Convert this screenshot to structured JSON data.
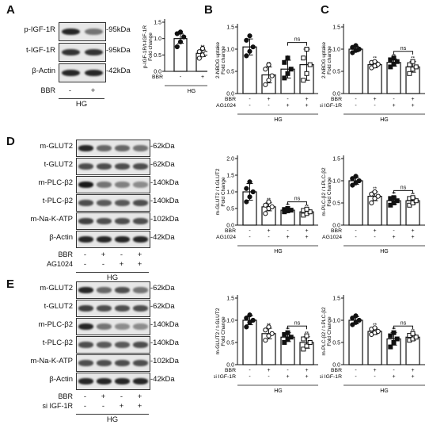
{
  "panels": {
    "A": {
      "letter": "A",
      "blot": {
        "rows": [
          {
            "label": "p-IGF-1R",
            "kda": "-95kDa"
          },
          {
            "label": "t-IGF-1R",
            "kda": "-95kDa"
          },
          {
            "label": "β-Actin",
            "kda": "-42kDa"
          }
        ],
        "treatments": [
          {
            "label": "BBR",
            "signs": [
              "-",
              "+"
            ]
          }
        ],
        "group": "HG"
      }
    },
    "B": {
      "letter": "B"
    },
    "C": {
      "letter": "C"
    },
    "D": {
      "letter": "D",
      "blot": {
        "rows": [
          {
            "label": "m-GLUT2",
            "kda": "-62kDa"
          },
          {
            "label": "t-GLUT2",
            "kda": "-62kDa"
          },
          {
            "label": "m-PLC-β2",
            "kda": "-140kDa"
          },
          {
            "label": "t-PLC-β2",
            "kda": "-140kDa"
          },
          {
            "label": "m-Na-K-ATP",
            "kda": "-102kDa"
          },
          {
            "label": "β-Actin",
            "kda": "-42kDa"
          }
        ],
        "treatments": [
          {
            "label": "BBR",
            "signs": [
              "-",
              "+",
              "-",
              "+"
            ]
          },
          {
            "label": "AG1024",
            "signs": [
              "-",
              "-",
              "+",
              "+"
            ]
          }
        ],
        "group": "HG"
      }
    },
    "E": {
      "letter": "E",
      "blot": {
        "rows": [
          {
            "label": "m-GLUT2",
            "kda": "-62kDa"
          },
          {
            "label": "t-GLUT2",
            "kda": "-62kDa"
          },
          {
            "label": "m-PLC-β2",
            "kda": "-140kDa"
          },
          {
            "label": "t-PLC-β2",
            "kda": "-140kDa"
          },
          {
            "label": "m-Na-K-ATP",
            "kda": "-102kDa"
          },
          {
            "label": "β-Actin",
            "kda": "-42kDa"
          }
        ],
        "treatments": [
          {
            "label": "BBR",
            "signs": [
              "-",
              "+",
              "-",
              "+"
            ]
          },
          {
            "label": "si IGF-1R",
            "signs": [
              "-",
              "-",
              "+",
              "+"
            ]
          }
        ],
        "group": "HG"
      }
    }
  },
  "chart_data": [
    {
      "id": "A-chart",
      "type": "bar",
      "ylabel": "p-IGF-1R/t-IGF-1R\nFold change",
      "ylim": [
        0,
        1.5
      ],
      "yticks": [
        "0.0",
        "0.5",
        "1.0",
        "1.5"
      ],
      "values": [
        1.0,
        0.55
      ],
      "errors": [
        0.14,
        0.1
      ],
      "points": [
        [
          0.75,
          0.9,
          1.05,
          1.15,
          1.2
        ],
        [
          0.4,
          0.5,
          0.55,
          0.6,
          0.7
        ]
      ],
      "fills": [
        "#ffffff",
        "#ffffff"
      ],
      "marker": [
        "circle-filled",
        "circle-open"
      ],
      "sig": [
        "",
        "**"
      ],
      "treatments": [
        {
          "label": "BBR",
          "signs": [
            "-",
            "+"
          ]
        }
      ],
      "group": "HG"
    },
    {
      "id": "B-chart",
      "type": "bar",
      "ylabel": "2-NBDG uptake\nFold change",
      "ylim": [
        0,
        1.5
      ],
      "yticks": [
        "0.0",
        "0.5",
        "1.0",
        "1.5"
      ],
      "values": [
        1.05,
        0.42,
        0.55,
        0.65
      ],
      "errors": [
        0.18,
        0.18,
        0.2,
        0.35
      ],
      "points": [
        [
          0.85,
          0.95,
          1.05,
          1.2,
          1.3
        ],
        [
          0.2,
          0.3,
          0.4,
          0.55,
          0.65
        ],
        [
          0.35,
          0.45,
          0.55,
          0.7,
          0.8
        ],
        [
          0.3,
          0.45,
          0.65,
          0.8,
          1.0
        ]
      ],
      "fills": [
        "#ffffff",
        "#ffffff",
        "#ffffff",
        "#ffffff"
      ],
      "marker": [
        "circle-filled",
        "circle-open",
        "square-filled",
        "square-open"
      ],
      "sig": [
        "",
        "**",
        "*",
        ""
      ],
      "bracket": {
        "from": 2,
        "to": 3,
        "label": "ns"
      },
      "treatments": [
        {
          "label": "BBR",
          "signs": [
            "-",
            "+",
            "-",
            "+"
          ]
        },
        {
          "label": "AG1024",
          "signs": [
            "-",
            "-",
            "+",
            "+"
          ]
        }
      ],
      "group": "HG"
    },
    {
      "id": "C-chart",
      "type": "bar",
      "ylabel": "2-NBDG uptake\nFold change",
      "ylim": [
        0,
        1.5
      ],
      "yticks": [
        "0.0",
        "0.5",
        "1.0",
        "1.5"
      ],
      "values": [
        1.0,
        0.65,
        0.7,
        0.6
      ],
      "errors": [
        0.06,
        0.07,
        0.08,
        0.12
      ],
      "points": [
        [
          0.92,
          0.97,
          1.0,
          1.04,
          1.08
        ],
        [
          0.58,
          0.62,
          0.66,
          0.7,
          0.72
        ],
        [
          0.6,
          0.66,
          0.72,
          0.76,
          0.8
        ],
        [
          0.45,
          0.55,
          0.6,
          0.65,
          0.72
        ]
      ],
      "fills": [
        "#ffffff",
        "#ffffff",
        "#ffffff",
        "#ffffff"
      ],
      "marker": [
        "circle-filled",
        "circle-open",
        "square-filled",
        "square-open"
      ],
      "sig": [
        "",
        "**",
        "**",
        "**"
      ],
      "bracket": {
        "from": 2,
        "to": 3,
        "label": "ns"
      },
      "treatments": [
        {
          "label": "BBR",
          "signs": [
            "-",
            "+",
            "-",
            "+"
          ]
        },
        {
          "label": "si IGF-1R",
          "signs": [
            "-",
            "-",
            "+",
            "+"
          ]
        }
      ],
      "group": "HG"
    },
    {
      "id": "D-chart1",
      "type": "bar",
      "ylabel": "m-GLUT2 / t-GLUT2\nFold Change",
      "ylim": [
        0,
        2.0
      ],
      "yticks": [
        "0.0",
        "0.5",
        "1.0",
        "1.5",
        "2.0"
      ],
      "values": [
        1.0,
        0.55,
        0.45,
        0.4
      ],
      "errors": [
        0.25,
        0.12,
        0.05,
        0.07
      ],
      "points": [
        [
          0.7,
          0.85,
          1.0,
          1.1,
          1.3
        ],
        [
          0.35,
          0.5,
          0.55,
          0.6,
          0.7
        ],
        [
          0.4,
          0.43,
          0.45,
          0.47,
          0.5
        ],
        [
          0.3,
          0.35,
          0.4,
          0.44,
          0.48
        ]
      ],
      "fills": [
        "#ffffff",
        "#ffffff",
        "#ffffff",
        "#ffffff"
      ],
      "marker": [
        "circle-filled",
        "circle-open",
        "square-filled",
        "square-open"
      ],
      "sig": [
        "",
        "**",
        "**",
        "**"
      ],
      "bracket": {
        "from": 2,
        "to": 3,
        "label": "ns"
      },
      "treatments": [
        {
          "label": "BBR",
          "signs": [
            "-",
            "+",
            "-",
            "+"
          ]
        },
        {
          "label": "AG1024",
          "signs": [
            "-",
            "-",
            "+",
            "+"
          ]
        }
      ],
      "group": "HG"
    },
    {
      "id": "D-chart2",
      "type": "bar",
      "ylabel": "m-PLC-β2 / t-PLC-β2\nFold Change",
      "ylim": [
        0,
        1.5
      ],
      "yticks": [
        "0.0",
        "0.5",
        "1.0",
        "1.5"
      ],
      "values": [
        1.0,
        0.65,
        0.55,
        0.55
      ],
      "errors": [
        0.08,
        0.1,
        0.08,
        0.07
      ],
      "points": [
        [
          0.9,
          0.95,
          1.0,
          1.05,
          1.1
        ],
        [
          0.5,
          0.6,
          0.65,
          0.7,
          0.75
        ],
        [
          0.45,
          0.5,
          0.55,
          0.6,
          0.62
        ],
        [
          0.45,
          0.5,
          0.55,
          0.6,
          0.62
        ]
      ],
      "fills": [
        "#ffffff",
        "#ffffff",
        "#ffffff",
        "#ffffff"
      ],
      "marker": [
        "circle-filled",
        "circle-open",
        "square-filled",
        "square-open"
      ],
      "sig": [
        "",
        "**",
        "**",
        "**"
      ],
      "bracket": {
        "from": 2,
        "to": 3,
        "label": "ns"
      },
      "treatments": [
        {
          "label": "BBR",
          "signs": [
            "-",
            "+",
            "-",
            "+"
          ]
        },
        {
          "label": "AG1024",
          "signs": [
            "-",
            "-",
            "+",
            "+"
          ]
        }
      ],
      "group": "HG"
    },
    {
      "id": "E-chart1",
      "type": "bar",
      "ylabel": "m-GLUT2 / t-GLUT2\nFold Change",
      "ylim": [
        0,
        1.5
      ],
      "yticks": [
        "0.0",
        "0.5",
        "1.0",
        "1.5"
      ],
      "values": [
        1.0,
        0.7,
        0.62,
        0.5
      ],
      "errors": [
        0.1,
        0.12,
        0.1,
        0.13
      ],
      "points": [
        [
          0.85,
          0.95,
          1.0,
          1.05,
          1.12
        ],
        [
          0.55,
          0.65,
          0.7,
          0.78,
          0.85
        ],
        [
          0.5,
          0.58,
          0.62,
          0.68,
          0.72
        ],
        [
          0.35,
          0.42,
          0.5,
          0.58,
          0.65
        ]
      ],
      "fills": [
        "#ffffff",
        "#ffffff",
        "#ffffff",
        "#ffffff"
      ],
      "marker": [
        "circle-filled",
        "circle-open",
        "square-filled",
        "square-open"
      ],
      "sig": [
        "",
        "**",
        "**",
        "**"
      ],
      "bracket": {
        "from": 2,
        "to": 3,
        "label": "ns"
      },
      "treatments": [
        {
          "label": "BBR",
          "signs": [
            "-",
            "+",
            "-",
            "+"
          ]
        },
        {
          "label": "si IGF-1R",
          "signs": [
            "-",
            "-",
            "+",
            "+"
          ]
        }
      ],
      "group": "HG"
    },
    {
      "id": "E-chart2",
      "type": "bar",
      "ylabel": "m-PLC-β2 / t-PLC-β2\nFold Change",
      "ylim": [
        0,
        1.5
      ],
      "yticks": [
        "0.0",
        "0.5",
        "1.0",
        "1.5"
      ],
      "values": [
        1.0,
        0.75,
        0.58,
        0.62
      ],
      "errors": [
        0.08,
        0.07,
        0.14,
        0.07
      ],
      "points": [
        [
          0.9,
          0.95,
          1.0,
          1.05,
          1.1
        ],
        [
          0.68,
          0.72,
          0.75,
          0.8,
          0.83
        ],
        [
          0.4,
          0.5,
          0.58,
          0.65,
          0.72
        ],
        [
          0.55,
          0.58,
          0.62,
          0.66,
          0.7
        ]
      ],
      "fills": [
        "#ffffff",
        "#ffffff",
        "#ffffff",
        "#ffffff"
      ],
      "marker": [
        "circle-filled",
        "circle-open",
        "square-filled",
        "square-open"
      ],
      "sig": [
        "",
        "**",
        "**",
        "**"
      ],
      "bracket": {
        "from": 2,
        "to": 3,
        "label": "ns"
      },
      "treatments": [
        {
          "label": "BBR",
          "signs": [
            "-",
            "+",
            "-",
            "+"
          ]
        },
        {
          "label": "si IGF-1R",
          "signs": [
            "-",
            "-",
            "+",
            "+"
          ]
        }
      ],
      "group": "HG"
    }
  ]
}
